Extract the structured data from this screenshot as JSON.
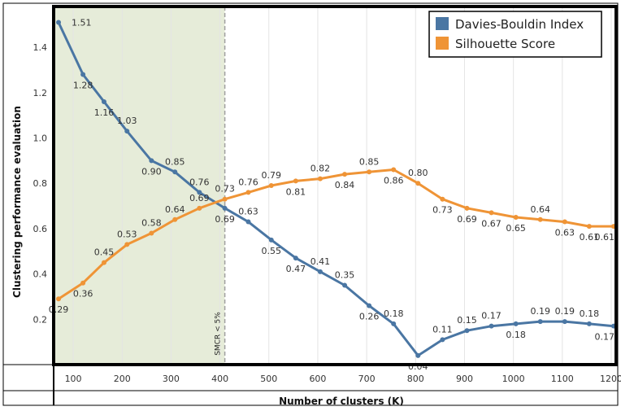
{
  "chart_data": {
    "type": "line",
    "title": "",
    "xlabel": "Number of clusters (K)",
    "ylabel": "Clustering performance evaluation",
    "xlim": [
      60,
      1210
    ],
    "ylim": [
      0,
      1.58
    ],
    "xticks": [
      100,
      200,
      300,
      400,
      500,
      600,
      700,
      800,
      900,
      1000,
      1100,
      1200
    ],
    "yticks": [
      0.2,
      0.4,
      0.6,
      0.8,
      1.0,
      1.2,
      1.4
    ],
    "ytick_labels": [
      "0.2",
      "0.4",
      "0.6",
      "0.8",
      "1.0",
      "1.2",
      "1.4"
    ],
    "x": [
      70,
      120,
      163,
      210,
      260,
      308,
      358,
      410,
      458,
      505,
      555,
      605,
      655,
      705,
      755,
      805,
      855,
      905,
      955,
      1005,
      1055,
      1105,
      1155,
      1205
    ],
    "series": [
      {
        "name": "Davies-Bouldin Index",
        "color": "#4a76a3",
        "values": [
          1.51,
          1.28,
          1.16,
          1.03,
          0.9,
          0.85,
          0.76,
          0.69,
          0.63,
          0.55,
          0.47,
          0.41,
          0.35,
          0.26,
          0.18,
          0.04,
          0.11,
          0.15,
          0.17,
          0.18,
          0.19,
          0.19,
          0.18,
          0.17
        ],
        "labels": [
          "1.51",
          "1.28",
          "1.16",
          "1.03",
          "0.90",
          "0.85",
          "0.76",
          "0.69",
          "0.63",
          "0.55",
          "0.47",
          "0.41",
          "0.35",
          "0.26",
          "0.18",
          "0.04",
          "0.11",
          "0.15",
          "0.17",
          "",
          "0.19",
          "0.19",
          "0.18",
          "0.17"
        ]
      },
      {
        "name": "Silhouette Score",
        "color": "#ef9436",
        "values": [
          0.29,
          0.36,
          0.45,
          0.53,
          0.58,
          0.64,
          0.69,
          0.73,
          0.76,
          0.79,
          0.81,
          0.82,
          0.84,
          0.85,
          0.86,
          0.8,
          0.73,
          0.69,
          0.67,
          0.65,
          0.64,
          0.63,
          0.61,
          0.61
        ],
        "labels": [
          "0.29",
          "0.36",
          "0.45",
          "0.53",
          "0.58",
          "0.64",
          "0.69",
          "0.73",
          "0.76",
          "0.79",
          "0.81",
          "0.82",
          "0.84",
          "0.85",
          "0.86",
          "0.80",
          "0.73",
          "0.69",
          "0.67",
          "0.65",
          "0.64",
          "0.63",
          "0.61",
          "0.61"
        ]
      }
    ],
    "extra_labels": [
      {
        "series": 0,
        "index": 19,
        "text": "0.18"
      }
    ],
    "shaded_region": {
      "x_from": 60,
      "x_to": 410,
      "color": "#e6ecd9"
    },
    "threshold_line": {
      "x": 410,
      "label": "SMCR < 5%"
    },
    "legend_position": "top-right"
  }
}
